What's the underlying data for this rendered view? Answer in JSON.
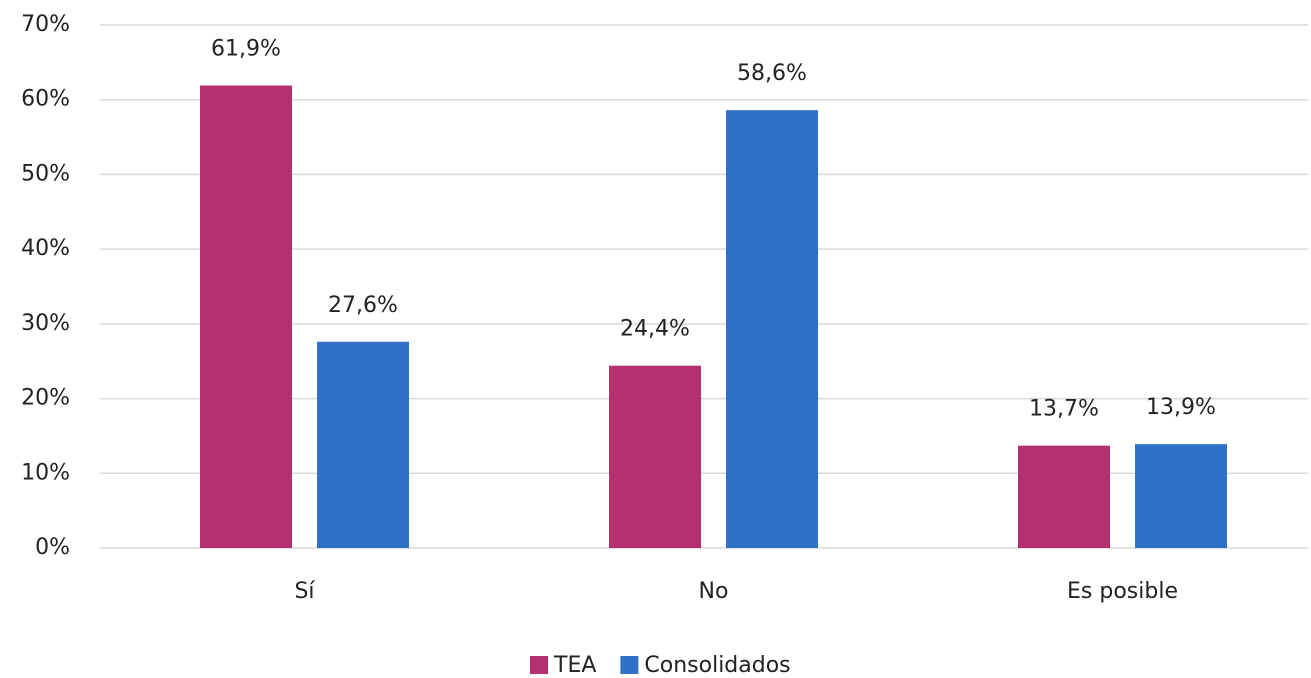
{
  "chart_data": {
    "type": "bar",
    "categories": [
      "Sí",
      "No",
      "Es posible"
    ],
    "series": [
      {
        "name": "TEA",
        "color": "#b5306f",
        "values": [
          61.9,
          24.4,
          13.7
        ],
        "value_labels": [
          "61,9%",
          "24,4%",
          "13,7%"
        ]
      },
      {
        "name": "Consolidados",
        "color": "#3070c8",
        "values": [
          27.6,
          58.6,
          13.9
        ],
        "value_labels": [
          "27,6%",
          "58,6%",
          "13,9%"
        ]
      }
    ],
    "ylim": [
      0,
      70
    ],
    "yticks": [
      {
        "value": 0,
        "label": "0%"
      },
      {
        "value": 10,
        "label": "10%"
      },
      {
        "value": 20,
        "label": "20%"
      },
      {
        "value": 30,
        "label": "30%"
      },
      {
        "value": 40,
        "label": "40%"
      },
      {
        "value": 50,
        "label": "50%"
      },
      {
        "value": 60,
        "label": "60%"
      },
      {
        "value": 70,
        "label": "70%"
      }
    ],
    "grid": true,
    "legend": "bottom"
  }
}
